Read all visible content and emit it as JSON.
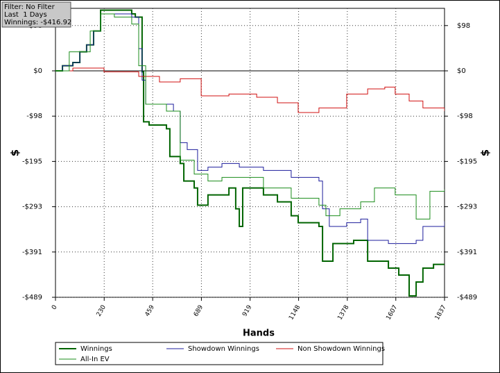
{
  "chart_data": {
    "type": "line",
    "annotations": [
      "Filter: No Filter",
      "Last  1 Days",
      "Winnings: -$416.92"
    ],
    "xlabel": "Hands",
    "ylabel": "$",
    "xlim": [
      0,
      1837
    ],
    "xticks": [
      0,
      230,
      459,
      689,
      919,
      1148,
      1378,
      1607,
      1837
    ],
    "ylim": [
      -489,
      135
    ],
    "yticks": [
      {
        "value": 97.8,
        "label": "$98"
      },
      {
        "value": 0,
        "label": "$0"
      },
      {
        "value": -97.8,
        "label": "-$98"
      },
      {
        "value": -195.6,
        "label": "-$195"
      },
      {
        "value": -293.4,
        "label": "-$293"
      },
      {
        "value": -391.2,
        "label": "-$391"
      },
      {
        "value": -489,
        "label": "-$489"
      }
    ],
    "grid": true,
    "step": true,
    "series": [
      {
        "name": "Winnings",
        "color": "#006400",
        "line_width": 2,
        "x": [
          0,
          33,
          82,
          115,
          147,
          180,
          213,
          278,
          360,
          377,
          409,
          416,
          442,
          524,
          540,
          589,
          606,
          655,
          671,
          720,
          819,
          851,
          868,
          884,
          982,
          1048,
          1113,
          1146,
          1244,
          1261,
          1310,
          1408,
          1474,
          1572,
          1621,
          1670,
          1703,
          1735,
          1785,
          1837
        ],
        "values": [
          0,
          11,
          18,
          41,
          56,
          86,
          131,
          131,
          123,
          116,
          -2,
          -110,
          -117,
          -125,
          -185,
          -200,
          -238,
          -253,
          -290,
          -268,
          -253,
          -298,
          -336,
          -253,
          -268,
          -283,
          -313,
          -328,
          -336,
          -411,
          -373,
          -366,
          -411,
          -426,
          -441,
          -486,
          -456,
          -426,
          -418,
          -417
        ]
      },
      {
        "name": "Showdown Winnings",
        "color": "#1c1c9c",
        "line_width": 1,
        "x": [
          0,
          33,
          82,
          115,
          147,
          180,
          213,
          278,
          360,
          393,
          409,
          426,
          557,
          589,
          622,
          671,
          720,
          786,
          868,
          917,
          982,
          1113,
          1244,
          1261,
          1293,
          1375,
          1441,
          1474,
          1572,
          1703,
          1735,
          1837
        ],
        "values": [
          0,
          11,
          18,
          41,
          56,
          86,
          123,
          123,
          116,
          48,
          -20,
          -72,
          -87,
          -155,
          -170,
          -215,
          -208,
          -200,
          -208,
          -208,
          -215,
          -230,
          -238,
          -298,
          -336,
          -328,
          -320,
          -366,
          -373,
          -366,
          -336,
          -325
        ]
      },
      {
        "name": "Non Showdown Winnings",
        "color": "#d01010",
        "line_width": 1,
        "x": [
          0,
          82,
          229,
          393,
          491,
          589,
          688,
          819,
          950,
          1048,
          1146,
          1244,
          1375,
          1474,
          1555,
          1604,
          1670,
          1735,
          1837
        ],
        "values": [
          0,
          6,
          -2,
          -12,
          -24,
          -17,
          -54,
          -50,
          -57,
          -69,
          -90,
          -80,
          -50,
          -39,
          -35,
          -50,
          -65,
          -80,
          -87
        ]
      },
      {
        "name": "All-In EV",
        "color": "#1a8c1a",
        "line_width": 1,
        "x": [
          0,
          65,
          164,
          213,
          278,
          360,
          393,
          426,
          524,
          589,
          655,
          720,
          786,
          884,
          982,
          1113,
          1244,
          1277,
          1343,
          1441,
          1506,
          1604,
          1703,
          1768,
          1837
        ],
        "values": [
          0,
          41,
          86,
          123,
          116,
          101,
          11,
          -72,
          -87,
          -193,
          -223,
          -238,
          -230,
          -230,
          -253,
          -275,
          -290,
          -313,
          -298,
          -283,
          -253,
          -268,
          -320,
          -260,
          -256
        ]
      }
    ]
  }
}
